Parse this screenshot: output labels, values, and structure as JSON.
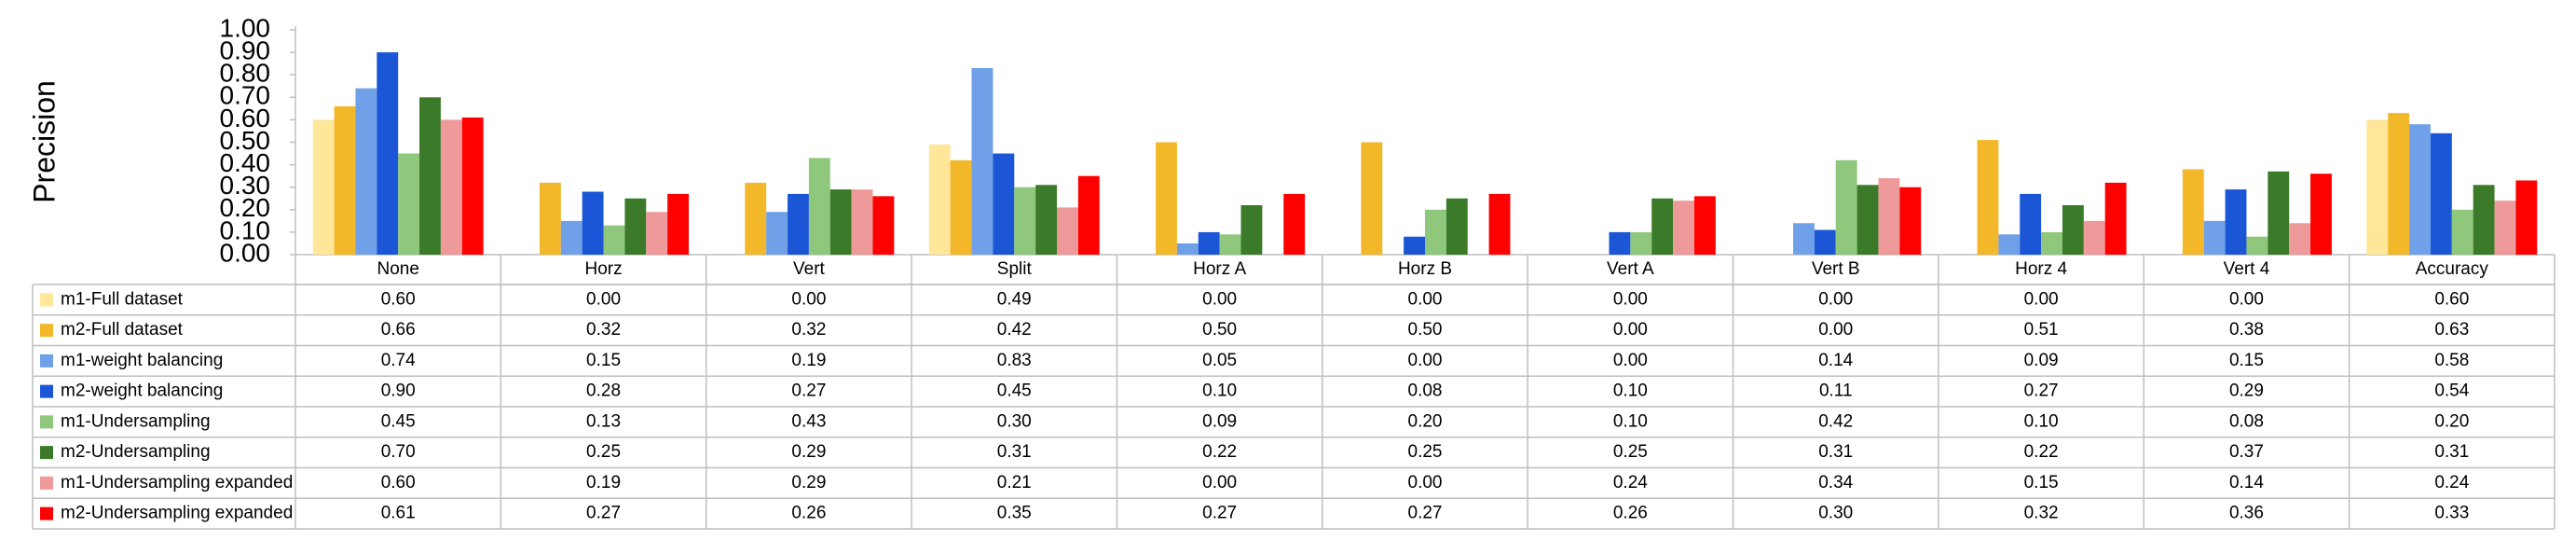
{
  "chart_data": {
    "type": "bar",
    "y_label": "Precision",
    "categories": [
      "None",
      "Horz",
      "Vert",
      "Split",
      "Horz A",
      "Horz B",
      "Vert A",
      "Vert B",
      "Horz 4",
      "Vert 4",
      "Accuracy"
    ],
    "ylim": [
      0,
      1
    ],
    "yticks": [
      {
        "value": 0,
        "label": "0.00"
      },
      {
        "value": 0.1,
        "label": "0.10"
      },
      {
        "value": 0.2,
        "label": "0.20"
      },
      {
        "value": 0.3,
        "label": "0.30"
      },
      {
        "value": 0.4,
        "label": "0.40"
      },
      {
        "value": 0.5,
        "label": "0.50"
      },
      {
        "value": 0.6,
        "label": "0.60"
      },
      {
        "value": 0.7,
        "label": "0.70"
      },
      {
        "value": 0.8,
        "label": "0.80"
      },
      {
        "value": 0.9,
        "label": "0.90"
      },
      {
        "value": 1,
        "label": "1.00"
      }
    ],
    "grid": false,
    "series": [
      {
        "name": "m1-Full dataset",
        "color": "#ffe699",
        "values": [
          0.6,
          0,
          0,
          0.49,
          0,
          0,
          0,
          0,
          0,
          0,
          0.6
        ],
        "value_labels": [
          "0.60",
          "0.00",
          "0.00",
          "0.49",
          "0.00",
          "0.00",
          "0.00",
          "0.00",
          "0.00",
          "0.00",
          "0.60"
        ]
      },
      {
        "name": "m2-Full dataset",
        "color": "#f2b829",
        "values": [
          0.66,
          0.32,
          0.32,
          0.42,
          0.5,
          0.5,
          0,
          0,
          0.51,
          0.38,
          0.63
        ],
        "value_labels": [
          "0.66",
          "0.32",
          "0.32",
          "0.42",
          "0.50",
          "0.50",
          "0.00",
          "0.00",
          "0.51",
          "0.38",
          "0.63"
        ]
      },
      {
        "name": "m1-weight balancing",
        "color": "#6fa0e8",
        "values": [
          0.74,
          0.15,
          0.19,
          0.83,
          0.05,
          0,
          0,
          0.14,
          0.09,
          0.15,
          0.58
        ],
        "value_labels": [
          "0.74",
          "0.15",
          "0.19",
          "0.83",
          "0.05",
          "0.00",
          "0.00",
          "0.14",
          "0.09",
          "0.15",
          "0.58"
        ]
      },
      {
        "name": "m2-weight balancing",
        "color": "#1a56d6",
        "values": [
          0.9,
          0.28,
          0.27,
          0.45,
          0.1,
          0.08,
          0.1,
          0.11,
          0.27,
          0.29,
          0.54
        ],
        "value_labels": [
          "0.90",
          "0.28",
          "0.27",
          "0.45",
          "0.10",
          "0.08",
          "0.10",
          "0.11",
          "0.27",
          "0.29",
          "0.54"
        ]
      },
      {
        "name": "m1-Undersampling",
        "color": "#8fc77c",
        "values": [
          0.45,
          0.13,
          0.43,
          0.3,
          0.09,
          0.2,
          0.1,
          0.42,
          0.1,
          0.08,
          0.2
        ],
        "value_labels": [
          "0.45",
          "0.13",
          "0.43",
          "0.30",
          "0.09",
          "0.20",
          "0.10",
          "0.42",
          "0.10",
          "0.08",
          "0.20"
        ]
      },
      {
        "name": "m2-Undersampling",
        "color": "#3a7a28",
        "values": [
          0.7,
          0.25,
          0.29,
          0.31,
          0.22,
          0.25,
          0.25,
          0.31,
          0.22,
          0.37,
          0.31
        ],
        "value_labels": [
          "0.70",
          "0.25",
          "0.29",
          "0.31",
          "0.22",
          "0.25",
          "0.25",
          "0.31",
          "0.22",
          "0.37",
          "0.31"
        ]
      },
      {
        "name": "m1-Undersampling expanded",
        "color": "#ee9a9a",
        "values": [
          0.6,
          0.19,
          0.29,
          0.21,
          0,
          0,
          0.24,
          0.34,
          0.15,
          0.14,
          0.24
        ],
        "value_labels": [
          "0.60",
          "0.19",
          "0.29",
          "0.21",
          "0.00",
          "0.00",
          "0.24",
          "0.34",
          "0.15",
          "0.14",
          "0.24"
        ]
      },
      {
        "name": "m2-Undersampling expanded",
        "color": "#ff0000",
        "values": [
          0.61,
          0.27,
          0.26,
          0.35,
          0.27,
          0.27,
          0.26,
          0.3,
          0.32,
          0.36,
          0.33
        ],
        "value_labels": [
          "0.61",
          "0.27",
          "0.26",
          "0.35",
          "0.27",
          "0.27",
          "0.26",
          "0.30",
          "0.32",
          "0.36",
          "0.33"
        ]
      }
    ]
  }
}
